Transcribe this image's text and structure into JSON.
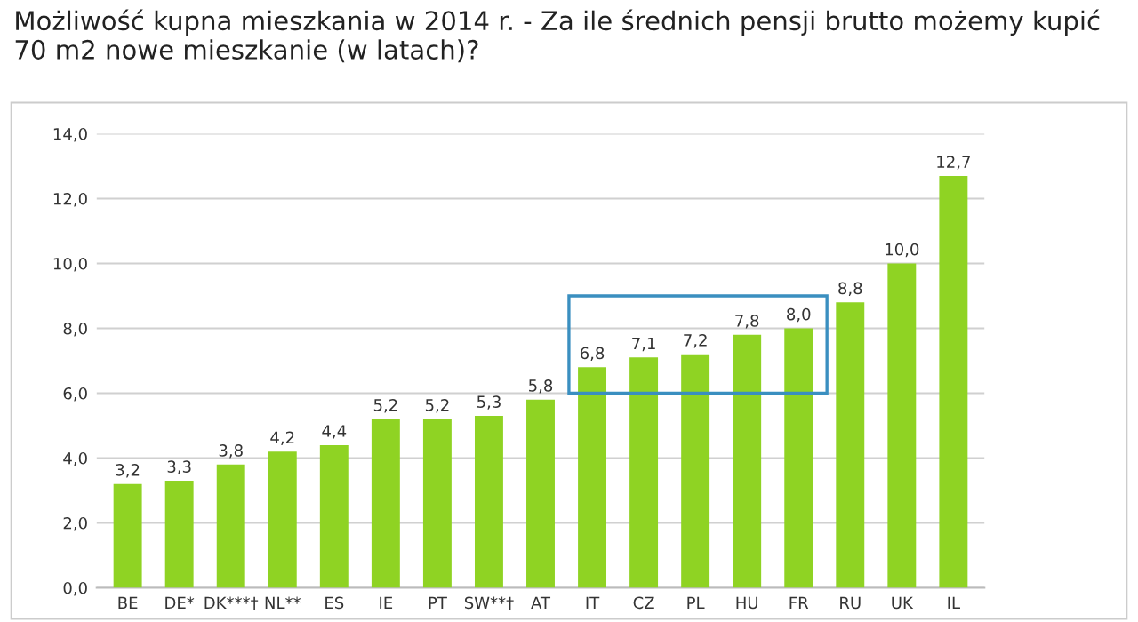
{
  "chart_data": {
    "type": "bar",
    "title": "Możliwość kupna mieszkania w 2014 r. - Za ile średnich pensji brutto możemy kupić 70 m2 nowe mieszkanie (w latach)?",
    "categories": [
      "BE",
      "DE*",
      "DK***†",
      "NL**",
      "ES",
      "IE",
      "PT",
      "SW**†",
      "AT",
      "IT",
      "CZ",
      "PL",
      "HU",
      "FR",
      "RU",
      "UK",
      "IL"
    ],
    "values": [
      3.2,
      3.3,
      3.8,
      4.2,
      4.4,
      5.2,
      5.2,
      5.3,
      5.8,
      6.8,
      7.1,
      7.2,
      7.8,
      8.0,
      8.8,
      10.0,
      12.7
    ],
    "value_labels": [
      "3,2",
      "3,3",
      "3,8",
      "4,2",
      "4,4",
      "5,2",
      "5,2",
      "5,3",
      "5,8",
      "6,8",
      "7,1",
      "7,2",
      "7,8",
      "8,0",
      "8,8",
      "10,0",
      "12,7"
    ],
    "color": "#8fd323",
    "ylim": [
      0,
      14
    ],
    "yticks": [
      {
        "value": 0,
        "label": "0,0"
      },
      {
        "value": 2,
        "label": "2,0"
      },
      {
        "value": 4,
        "label": "4,0"
      },
      {
        "value": 6,
        "label": "6,0"
      },
      {
        "value": 8,
        "label": "8,0"
      },
      {
        "value": 10,
        "label": "10,0"
      },
      {
        "value": 12,
        "label": "12,0"
      },
      {
        "value": 14,
        "label": "14,0"
      }
    ],
    "grid": "y"
  }
}
